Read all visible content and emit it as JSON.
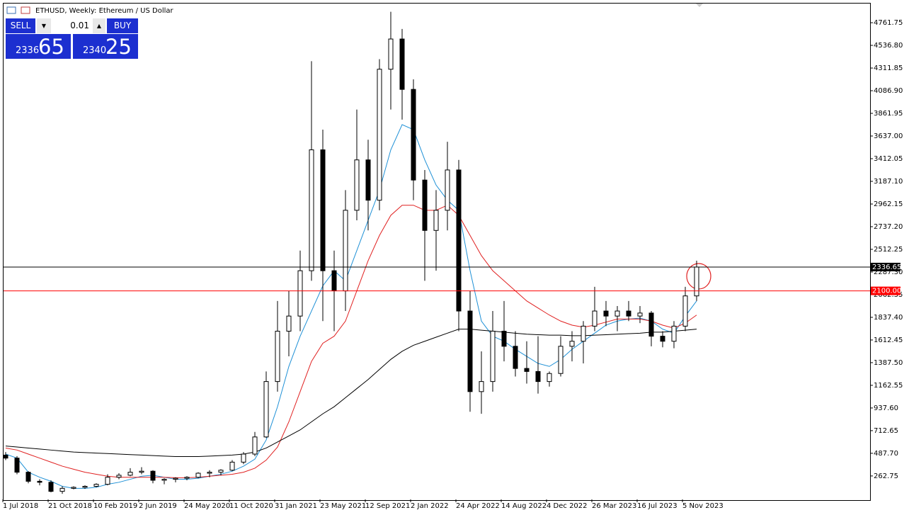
{
  "chart_data": {
    "type": "candlestick",
    "title": "ETHUSD, Weekly:  Ethereum / US Dollar",
    "categories": [
      "1 Jul 2018",
      null,
      null,
      null,
      "21 Oct 2018",
      null,
      null,
      null,
      "10 Feb 2019",
      null,
      null,
      null,
      "2 Jun 2019",
      null,
      null,
      null,
      "24 May 2020",
      null,
      null,
      null,
      "11 Oct 2020",
      null,
      null,
      null,
      "31 Jan 2021",
      null,
      null,
      null,
      "23 May 2021",
      null,
      null,
      null,
      "12 Sep 2021",
      null,
      null,
      null,
      "2 Jan 2022",
      null,
      null,
      null,
      "24 Apr 2022",
      null,
      null,
      null,
      "14 Aug 2022",
      null,
      null,
      null,
      "4 Dec 2022",
      null,
      null,
      null,
      "26 Mar 2023",
      null,
      null,
      null,
      "16 Jul 2023",
      null,
      null,
      null,
      "5 Nov 2023",
      null
    ],
    "open": [
      470,
      440,
      300,
      210,
      200,
      110,
      140,
      150,
      160,
      180,
      250,
      270,
      300,
      310,
      220,
      230,
      240,
      250,
      290,
      300,
      320,
      400,
      480,
      650,
      1200,
      1700,
      1850,
      2300,
      3500,
      2300,
      2100,
      2900,
      3400,
      3000,
      4300,
      4600,
      4100,
      3200,
      2700,
      2900,
      3300,
      1900,
      1100,
      1200,
      1700,
      1550,
      1330,
      1300,
      1200,
      1280,
      1550,
      1600,
      1750,
      1900,
      1850,
      1900,
      1850,
      1880,
      1650,
      1600,
      1750,
      2050
    ],
    "high": [
      500,
      460,
      310,
      230,
      220,
      160,
      160,
      170,
      190,
      280,
      290,
      340,
      350,
      320,
      240,
      250,
      260,
      300,
      320,
      330,
      420,
      500,
      700,
      1300,
      2000,
      2100,
      2500,
      4380,
      3700,
      2500,
      3100,
      3900,
      3600,
      4400,
      4870,
      4700,
      4200,
      3300,
      3100,
      3580,
      3400,
      2100,
      1500,
      1900,
      2000,
      1700,
      1600,
      1650,
      1300,
      1650,
      1700,
      1800,
      2140,
      2000,
      1950,
      2000,
      1950,
      1900,
      1700,
      1800,
      2140,
      2400
    ],
    "low": [
      420,
      280,
      190,
      170,
      100,
      85,
      130,
      135,
      150,
      170,
      230,
      260,
      280,
      190,
      180,
      200,
      220,
      240,
      250,
      270,
      310,
      380,
      460,
      640,
      1100,
      1450,
      1700,
      2200,
      1800,
      1700,
      1900,
      2800,
      2700,
      2900,
      3900,
      3800,
      3000,
      2200,
      2300,
      2700,
      1700,
      900,
      880,
      1100,
      1400,
      1250,
      1180,
      1080,
      1150,
      1250,
      1400,
      1380,
      1700,
      1750,
      1700,
      1800,
      1780,
      1550,
      1540,
      1530,
      1700,
      2000
    ],
    "close": [
      440,
      300,
      210,
      200,
      110,
      140,
      150,
      160,
      180,
      250,
      270,
      300,
      310,
      220,
      230,
      240,
      250,
      290,
      300,
      320,
      400,
      480,
      650,
      1200,
      1700,
      1850,
      2300,
      3500,
      2300,
      2100,
      2900,
      3400,
      3000,
      4300,
      4600,
      4100,
      3200,
      2700,
      2900,
      3300,
      1900,
      1100,
      1200,
      1700,
      1550,
      1330,
      1300,
      1200,
      1280,
      1550,
      1600,
      1750,
      1900,
      1850,
      1900,
      1850,
      1880,
      1650,
      1600,
      1750,
      2050,
      2336.65
    ],
    "lines": [
      {
        "color": "#1e90d6",
        "values": [
          480,
          440,
          300,
          250,
          210,
          160,
          140,
          140,
          150,
          180,
          200,
          230,
          260,
          270,
          250,
          230,
          230,
          240,
          260,
          280,
          310,
          360,
          430,
          620,
          950,
          1350,
          1650,
          1900,
          2150,
          2300,
          2200,
          2500,
          2800,
          3100,
          3500,
          3750,
          3700,
          3400,
          3150,
          3000,
          2900,
          2300,
          1800,
          1650,
          1600,
          1520,
          1450,
          1380,
          1350,
          1420,
          1520,
          1600,
          1680,
          1760,
          1800,
          1820,
          1830,
          1800,
          1720,
          1680,
          1850,
          2000
        ]
      },
      {
        "color": "#e02020",
        "values": [
          540,
          520,
          480,
          440,
          400,
          360,
          330,
          300,
          280,
          260,
          250,
          250,
          250,
          250,
          250,
          245,
          245,
          250,
          260,
          270,
          280,
          300,
          340,
          420,
          550,
          800,
          1100,
          1400,
          1580,
          1650,
          1800,
          2100,
          2400,
          2650,
          2850,
          2950,
          2950,
          2900,
          2900,
          2950,
          2850,
          2650,
          2450,
          2300,
          2200,
          2100,
          2000,
          1930,
          1860,
          1800,
          1760,
          1740,
          1760,
          1790,
          1820,
          1820,
          1820,
          1800,
          1760,
          1730,
          1780,
          1860
        ]
      },
      {
        "color": "#000000",
        "values": [
          560,
          550,
          540,
          530,
          520,
          510,
          500,
          495,
          490,
          485,
          480,
          475,
          470,
          465,
          460,
          455,
          455,
          455,
          460,
          465,
          470,
          480,
          500,
          540,
          600,
          660,
          720,
          800,
          880,
          950,
          1040,
          1130,
          1220,
          1320,
          1420,
          1500,
          1560,
          1600,
          1640,
          1680,
          1720,
          1720,
          1710,
          1700,
          1690,
          1680,
          1670,
          1665,
          1660,
          1660,
          1655,
          1655,
          1660,
          1665,
          1670,
          1675,
          1680,
          1690,
          1690,
          1700,
          1710,
          1720
        ]
      }
    ],
    "levels": [
      {
        "value": 2336.65,
        "color": "#000000"
      },
      {
        "value": 2100,
        "label": "2100.00",
        "color": "#ff0000"
      }
    ],
    "ylim": [
      30,
      4952
    ],
    "yticks": [
      262.75,
      {
        "value": 487.7,
        "label": "487.70"
      },
      712.65,
      {
        "value": 937.6,
        "label": "937.60"
      },
      1162.55,
      {
        "value": 1387.5,
        "label": "1387.50"
      },
      1612.45,
      {
        "value": 1837.4,
        "label": "1837.40"
      },
      2062.35,
      {
        "value": 2287.3,
        "label": "2287.30"
      },
      2512.25,
      {
        "value": 2737.2,
        "label": "2737.20"
      },
      2962.15,
      {
        "value": 3187.1,
        "label": "3187.10"
      },
      3412.05,
      {
        "value": 3637,
        "label": "3637.00"
      },
      3861.95,
      {
        "value": 4086.9,
        "label": "4086.90"
      },
      4311.85,
      {
        "value": 4536.8,
        "label": "4536.80"
      },
      4761.75
    ],
    "grid": false
  },
  "trade_panel": {
    "sell": "SELL",
    "buy": "BUY",
    "volume": "0.01",
    "bid_main": "2336",
    "bid_pips": "65",
    "ask_main": "2340",
    "ask_pips": "25"
  }
}
